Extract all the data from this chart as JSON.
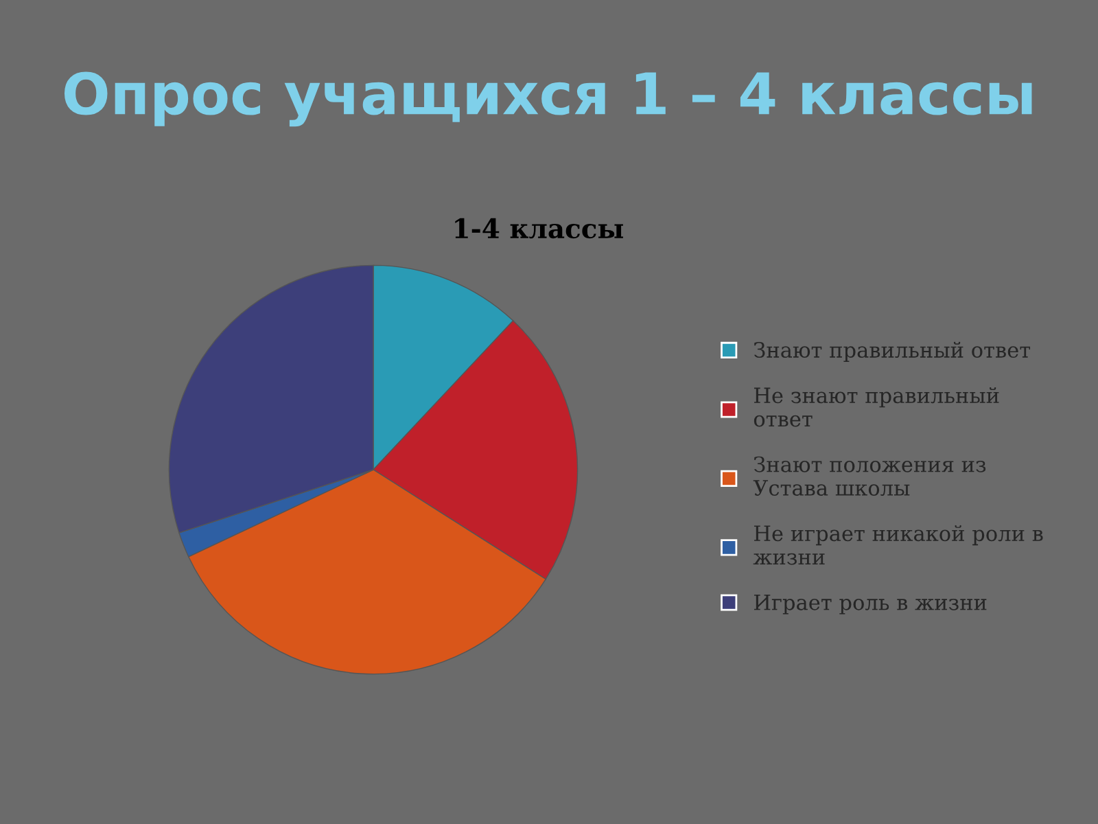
{
  "chart_data": {
    "type": "pie",
    "title": "Опрос учащихся 1 – 4 классы",
    "subtitle": "1-4 классы",
    "categories": [
      "Знают правильный ответ",
      "Не знают правильный ответ",
      "Знают положения из Устава школы",
      "Не играет никакой роли в жизни",
      "Играет роль в жизни"
    ],
    "values": [
      12,
      22,
      34,
      2,
      30
    ],
    "colors": [
      "#2a9bb5",
      "#c0202a",
      "#d9561a",
      "#2e5fa3",
      "#3d3f7a"
    ],
    "legend": "right"
  }
}
